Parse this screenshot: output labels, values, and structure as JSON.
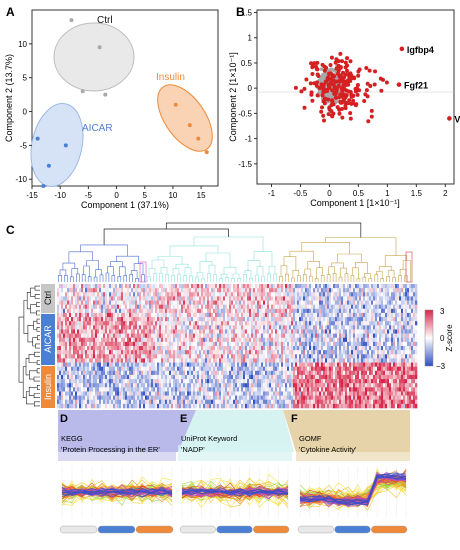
{
  "panels": {
    "a": "A",
    "b": "B",
    "c": "C",
    "d": "D",
    "e": "E",
    "f": "F"
  },
  "colors": {
    "ctrl": "#bdbdbd",
    "aicar": "#4a7fd4",
    "insulin": "#ef8a3a",
    "sig": "#d42020",
    "nonsig": "#a9a9a9",
    "heat_pos": "#d6284a",
    "heat_neg": "#2f4fc2"
  },
  "chart_data": [
    {
      "type": "scatter",
      "panel": "A",
      "xlabel": "Component 1 (37.1%)",
      "ylabel": "Component 2 (13.7%)",
      "xlim": [
        -15,
        18
      ],
      "ylim": [
        -11,
        15
      ],
      "xticks": [
        "-15",
        "-10",
        "-5",
        "0",
        "5",
        "10",
        "15"
      ],
      "yticks": [
        "-10",
        "-5",
        "0",
        "5",
        "10"
      ],
      "series": [
        {
          "name": "Ctrl",
          "color": "#a9a9a9",
          "points": [
            [
              -8,
              13.5
            ],
            [
              -3,
              9.5
            ],
            [
              -6,
              3
            ],
            [
              -2,
              2.5
            ]
          ]
        },
        {
          "name": "Insulin",
          "color": "#ef8a3a",
          "points": [
            [
              10.5,
              1
            ],
            [
              13,
              -2
            ],
            [
              14.5,
              -4
            ],
            [
              16,
              -6
            ]
          ]
        },
        {
          "name": "AICAR",
          "color": "#4a7fd4",
          "points": [
            [
              -14,
              -4
            ],
            [
              -9,
              -5
            ],
            [
              -12,
              -8
            ],
            [
              -13,
              -11
            ]
          ]
        }
      ]
    },
    {
      "type": "scatter",
      "panel": "B",
      "xlabel": "Component 1 [1×10⁻¹]",
      "ylabel": "Component 2 [1×10⁻¹]",
      "xlim": [
        -1.25,
        2.15
      ],
      "ylim": [
        -1.9,
        1.55
      ],
      "xticks": [
        "-1",
        "-0.5",
        "0",
        "0.5",
        "1",
        "1.5",
        "2"
      ],
      "yticks": [
        "-1.5",
        "-1",
        "-0.5",
        "0",
        "0.5",
        "1",
        "1.5"
      ],
      "labeled_points": [
        {
          "name": "Igfbp4",
          "x": 1.25,
          "y": 0.78
        },
        {
          "name": "Fgf21",
          "x": 1.2,
          "y": 0.07
        },
        {
          "name": "Vegfa",
          "x": 2.07,
          "y": -0.6
        }
      ]
    },
    {
      "type": "heatmap",
      "panel": "C",
      "groups": [
        "Ctrl",
        "AICAR",
        "Insulin"
      ],
      "colorbar": {
        "label": "Z-score",
        "ticks": [
          "3",
          "0",
          "−3"
        ],
        "range": [
          -3,
          3
        ]
      }
    }
  ],
  "enrichment": [
    {
      "panel": "D",
      "source": "KEGG",
      "term": "'Protein Processing in the ER'",
      "color": "#b9b9ea"
    },
    {
      "panel": "E",
      "source": "UniProt Keyword",
      "term": "'NADP'",
      "color": "#d6f3f1"
    },
    {
      "panel": "F",
      "source": "GOMF",
      "term": "'Cytokine Activity'",
      "color": "#e6d3a9"
    }
  ],
  "condition_bar": [
    "#e8e8e8",
    "#4a7fd4",
    "#ef8a3a"
  ]
}
